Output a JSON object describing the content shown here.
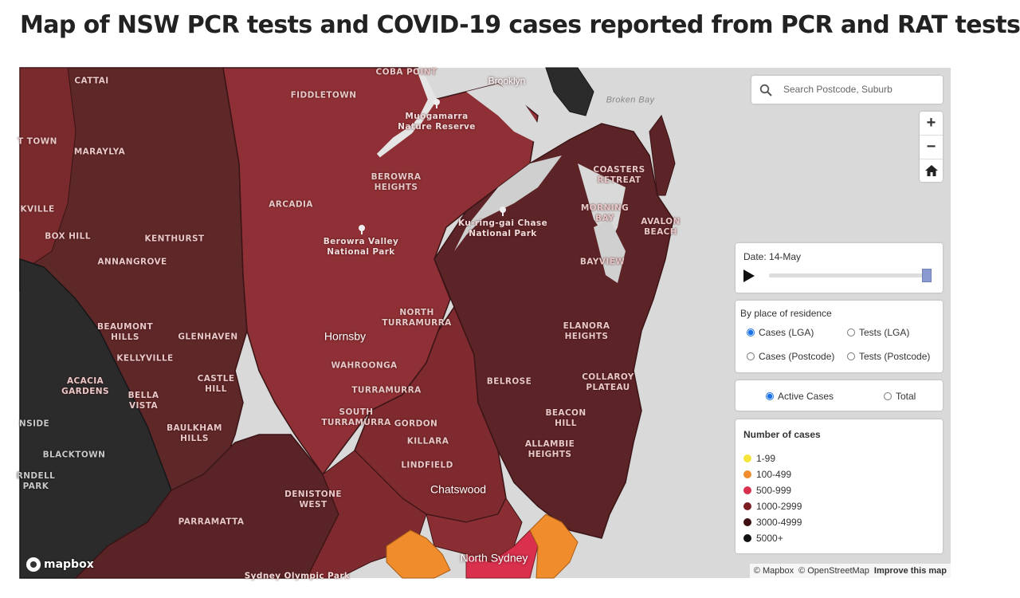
{
  "title": "Map of NSW PCR tests and COVID-19 cases reported from PCR and RAT tests",
  "search": {
    "placeholder": "Search Postcode, Suburb",
    "icon": "search-icon"
  },
  "zoom": {
    "in": "+",
    "out": "−",
    "home_icon": "home-icon"
  },
  "date_control": {
    "label": "Date: 14-May",
    "slider_position": 1.0
  },
  "residence": {
    "title": "By place of residence",
    "options": [
      "Cases (LGA)",
      "Tests (LGA)",
      "Cases (Postcode)",
      "Tests (Postcode)"
    ],
    "selected": "Cases (LGA)"
  },
  "mode": {
    "options": [
      "Active Cases",
      "Total"
    ],
    "selected": "Active Cases"
  },
  "legend": {
    "title": "Number of cases",
    "items": [
      {
        "label": "1-99",
        "color": "#f5e43a"
      },
      {
        "label": "100-499",
        "color": "#f08c2b"
      },
      {
        "label": "500-999",
        "color": "#d9304e"
      },
      {
        "label": "1000-2999",
        "color": "#7a1e24"
      },
      {
        "label": "3000-4999",
        "color": "#3d0f12"
      },
      {
        "label": "5000+",
        "color": "#111111"
      }
    ]
  },
  "attribution": {
    "mapbox": "© Mapbox",
    "osm": "© OpenStreetMap",
    "improve": "Improve this map",
    "logo": "mapbox"
  },
  "map_labels": {
    "cattai": "CATTAI",
    "fiddletown": "FIDDLETOWN",
    "cobah_point": "COBA POINT",
    "brooklyn": "Brooklyn",
    "broken_bay": "Broken Bay",
    "muogamarra": "Muogamarra\nNature Reserve",
    "town": "T TOWN",
    "maraylya": "MARAYLYA",
    "berowra_heights": "BEROWRA\nHEIGHTS",
    "coasters_retreat": "COASTERS\nRETREAT",
    "kville": "KVILLE",
    "arcadia": "ARCADIA",
    "kuringgai": "Ku-ring-gai Chase\nNational Park",
    "morning_bay": "MORNING\nBAY",
    "avalon_beach": "AVALON\nBEACH",
    "box_hill": "BOX HILL",
    "kenthurst": "KENTHURST",
    "berowra_valley": "Berowra Valley\nNational Park",
    "annangrove": "ANNANGROVE",
    "bayview": "BAYVIEW",
    "north_turramurra": "NORTH\nTURRAMURRA",
    "beaumont_hills": "BEAUMONT\nHILLS",
    "glenhaven": "GLENHAVEN",
    "hornsby": "Hornsby",
    "elanora_heights": "ELANORA\nHEIGHTS",
    "kellyville": "KELLYVILLE",
    "wahroonga": "WAHROONGA",
    "acacia_gardens": "ACACIA\nGARDENS",
    "castle_hill": "CASTLE\nHILL",
    "belrose": "BELROSE",
    "collaroy_plateau": "COLLAROY\nPLATEAU",
    "bella_vista": "BELLA\nVISTA",
    "turramurra": "TURRAMURRA",
    "baulkham_hills": "BAULKHAM\nHILLS",
    "south_turramurra": "SOUTH\nTURRAMURRA",
    "gordon": "GORDON",
    "beacon_hill": "BEACON\nHILL",
    "nside": "NSIDE",
    "killara": "KILLARA",
    "allambie_heights": "ALLAMBIE\nHEIGHTS",
    "blacktown": "BLACKTOWN",
    "lindfield": "LINDFIELD",
    "arndell_park": "RNDELL\nPARK",
    "denistone_west": "DENISTONE\nWEST",
    "chatswood": "Chatswood",
    "parramatta": "PARRAMATTA",
    "north_sydney": "North Sydney",
    "sydney_olympic_park": "Sydney Olympic Park"
  }
}
